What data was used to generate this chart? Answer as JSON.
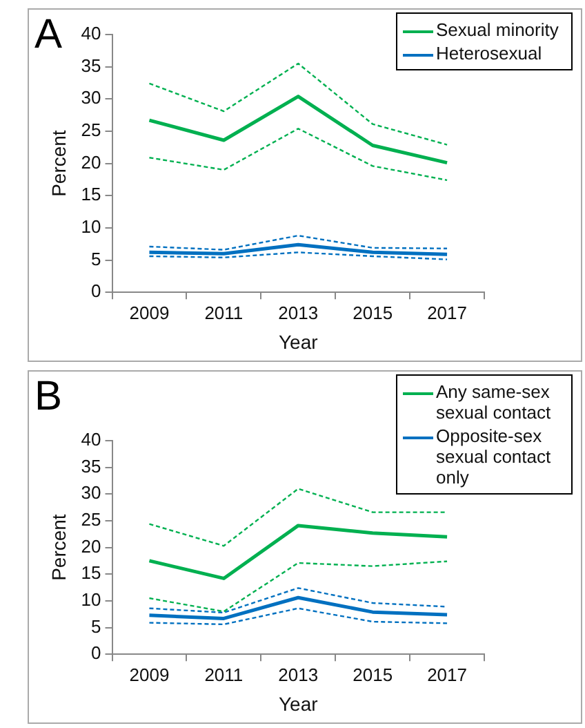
{
  "chart_data": [
    {
      "type": "line",
      "annotations": [
        "A"
      ],
      "xlabel": "Year",
      "ylabel": "Percent",
      "categories": [
        "2009",
        "2011",
        "2013",
        "2015",
        "2017"
      ],
      "ylim": [
        0,
        40
      ],
      "yticks": [
        0,
        5,
        10,
        15,
        20,
        25,
        30,
        35,
        40
      ],
      "legend": "top right",
      "marker": "none",
      "line_style": "solid",
      "grid": false,
      "series": [
        {
          "name": "Sexual minority",
          "color": "#00b050",
          "values": [
            26.7,
            23.6,
            30.4,
            22.8,
            20.1
          ]
        },
        {
          "name": "Heterosexual",
          "color": "#0070c0",
          "values": [
            6.2,
            6.0,
            7.4,
            6.2,
            5.9
          ]
        },
        {
          "color": "#00b050",
          "line_style": "dashed",
          "values": [
            20.9,
            19.0,
            25.4,
            19.6,
            17.4
          ]
        },
        {
          "color": "#00b050",
          "line_style": "dashed",
          "values": [
            32.4,
            28.1,
            35.5,
            26.1,
            22.9
          ]
        },
        {
          "color": "#0070c0",
          "line_style": "dashed",
          "values": [
            5.6,
            5.4,
            6.2,
            5.6,
            5.1
          ]
        },
        {
          "color": "#0070c0",
          "line_style": "dashed",
          "values": [
            7.1,
            6.6,
            8.8,
            6.9,
            6.8
          ]
        }
      ]
    },
    {
      "type": "line",
      "annotations": [
        "B"
      ],
      "xlabel": "Year",
      "ylabel": "Percent",
      "categories": [
        "2009",
        "2011",
        "2013",
        "2015",
        "2017"
      ],
      "ylim": [
        0,
        40
      ],
      "yticks": [
        0,
        5,
        10,
        15,
        20,
        25,
        30,
        35,
        40
      ],
      "legend": "top right",
      "marker": "none",
      "line_style": "solid",
      "grid": false,
      "series": [
        {
          "name": "Any same-sex sexual contact",
          "color": "#00b050",
          "values": [
            17.5,
            14.2,
            24.1,
            22.7,
            22.0
          ]
        },
        {
          "name": "Opposite-sex sexual contact only",
          "color": "#0070c0",
          "values": [
            7.3,
            6.7,
            10.6,
            7.9,
            7.4
          ]
        },
        {
          "color": "#00b050",
          "line_style": "dashed",
          "values": [
            10.5,
            8.0,
            17.1,
            16.5,
            17.4
          ]
        },
        {
          "color": "#00b050",
          "line_style": "dashed",
          "values": [
            24.4,
            20.3,
            31.0,
            26.6,
            26.6
          ]
        },
        {
          "color": "#0070c0",
          "line_style": "dashed",
          "values": [
            5.9,
            5.6,
            8.6,
            6.1,
            5.8
          ]
        },
        {
          "color": "#0070c0",
          "line_style": "dashed",
          "values": [
            8.6,
            7.8,
            12.4,
            9.6,
            8.9
          ]
        }
      ]
    }
  ]
}
